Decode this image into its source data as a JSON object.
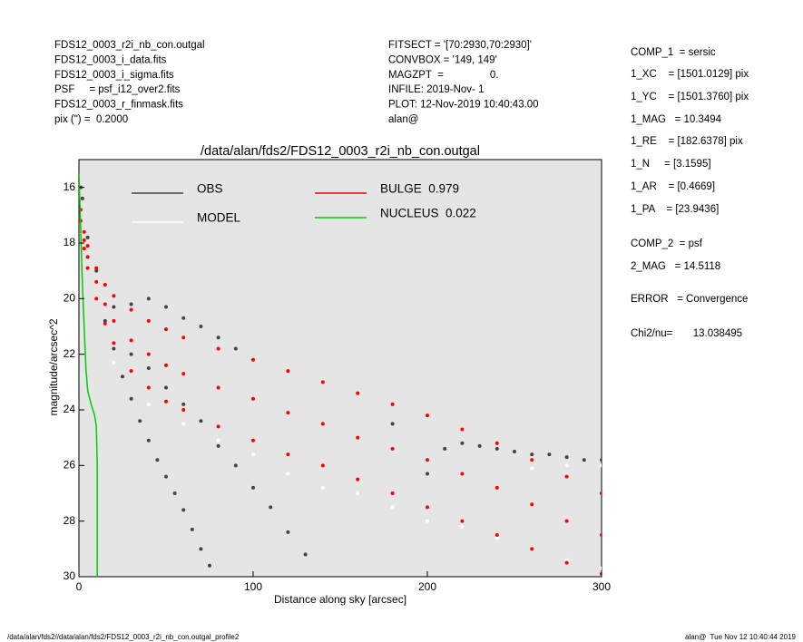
{
  "header": {
    "left": [
      "FDS12_0003_r2i_nb_con.outgal",
      "FDS12_0003_i_data.fits",
      "FDS12_0003_i_sigma.fits",
      "PSF     = psf_i12_over2.fits",
      "FDS12_0003_r_finmask.fits",
      "pix (\") =  0.2000"
    ],
    "middle": [
      "FITSECT = '[70:2930,70:2930]'",
      "CONVBOX = '149, 149'",
      "MAGZPT  =                0.",
      "INFILE: 2019-Nov- 1",
      "PLOT: 12-Nov-2019 10:40:43.00",
      "alan@"
    ],
    "right": [
      "COMP_1  = sersic",
      "1_XC    = [1501.0129] pix",
      "1_YC    = [1501.3760] pix",
      "1_MAG   = 10.3494",
      "1_RE    = [182.6378] pix",
      "1_N     = [3.1595]",
      "1_AR    = [0.4669]",
      "1_PA    = [23.9436]",
      "COMP_2  = psf",
      "2_MAG   = 14.5118",
      "ERROR   = Convergence",
      "Chi2/nu=       13.038495"
    ]
  },
  "footer": {
    "left": "/data/alan/fds2//data/alan/fds2/FDS12_0003_r2i_nb_con.outgal_profile2",
    "right": "alan@  Tue Nov 12 10:40:44 2019"
  },
  "chart_data": {
    "type": "scatter",
    "title": "/data/alan/fds2/FDS12_0003_r2i_nb_con.outgal",
    "x_label": "Distance along sky [arcsec]",
    "y_label": "magnitude/arcsec^2",
    "xlim": [
      0,
      300
    ],
    "xticks": [
      0,
      100,
      200,
      300
    ],
    "ylim": [
      15,
      30
    ],
    "yticks": [
      16,
      18,
      20,
      22,
      24,
      26,
      28,
      30
    ],
    "y_inverted": true,
    "background": "#e5e5e5",
    "series": [
      {
        "name": "OBS",
        "color": "#444444",
        "mode": "points",
        "x": [
          1,
          2,
          5,
          10,
          20,
          30,
          40,
          50,
          60,
          70,
          80,
          90,
          15,
          20,
          25,
          30,
          35,
          40,
          45,
          50,
          55,
          60,
          65,
          70,
          75,
          30,
          40,
          50,
          60,
          70,
          80,
          90,
          100,
          110,
          120,
          130,
          210,
          220,
          230,
          240,
          250,
          260,
          270,
          280,
          290,
          300,
          180,
          200
        ],
        "y": [
          16.0,
          16.4,
          17.8,
          19.0,
          20.3,
          20.2,
          20.0,
          20.3,
          20.7,
          21.0,
          21.4,
          21.8,
          20.8,
          21.8,
          22.8,
          23.6,
          24.4,
          25.1,
          25.8,
          26.4,
          27.0,
          27.6,
          28.3,
          29.0,
          29.6,
          22.0,
          22.5,
          23.2,
          23.8,
          24.4,
          25.3,
          26.0,
          26.8,
          27.5,
          28.4,
          29.2,
          25.4,
          25.2,
          25.3,
          25.4,
          25.5,
          25.6,
          25.6,
          25.7,
          25.8,
          25.8,
          24.5,
          26.3
        ]
      },
      {
        "name": "MODEL",
        "color": "#ffffff",
        "mode": "points",
        "x": [
          20,
          40,
          60,
          80,
          100,
          120,
          140,
          160,
          180,
          200,
          220,
          240,
          260,
          280,
          300,
          300,
          280,
          260
        ],
        "y": [
          22.3,
          23.8,
          24.5,
          25.1,
          25.6,
          26.3,
          26.8,
          27.0,
          27.5,
          28.0,
          28.2,
          28.6,
          29.0,
          29.4,
          29.7,
          26.0,
          26.0,
          26.1
        ]
      },
      {
        "name": "BULGE  0.979",
        "color": "#ff0000",
        "mode": "points",
        "x": [
          1,
          3,
          5,
          10,
          15,
          20,
          30,
          40,
          50,
          60,
          80,
          100,
          120,
          140,
          160,
          180,
          200,
          220,
          240,
          260,
          280,
          300,
          1,
          3,
          5,
          10,
          15,
          20,
          30,
          40,
          50,
          60,
          80,
          100,
          120,
          140,
          160,
          180,
          200,
          220,
          240,
          260,
          280,
          300,
          3,
          5,
          10,
          15,
          20,
          30,
          40,
          50,
          60,
          80,
          100,
          120,
          140,
          160,
          180,
          200,
          220,
          240,
          260,
          280,
          300
        ],
        "y": [
          16.8,
          17.6,
          18.1,
          18.9,
          19.5,
          19.9,
          20.4,
          20.8,
          21.1,
          21.4,
          21.8,
          22.2,
          22.6,
          23.0,
          23.4,
          23.8,
          24.2,
          24.7,
          25.2,
          25.8,
          26.4,
          27.0,
          17.2,
          18.2,
          18.9,
          20.0,
          20.9,
          21.6,
          22.6,
          23.2,
          23.7,
          24.0,
          24.6,
          25.1,
          25.6,
          26.0,
          26.5,
          27.0,
          27.5,
          28.0,
          28.5,
          29.0,
          29.5,
          29.9,
          17.9,
          18.5,
          19.4,
          20.2,
          20.8,
          21.5,
          22.0,
          22.4,
          22.7,
          23.2,
          23.6,
          24.1,
          24.5,
          25.0,
          25.4,
          25.8,
          26.3,
          26.8,
          27.4,
          28.0,
          28.5
        ]
      },
      {
        "name": "NUCLEUS  0.022",
        "color": "#00cc00",
        "mode": "line",
        "x": [
          0,
          1,
          2,
          3,
          4,
          5,
          7,
          9,
          10,
          10.5,
          10.5
        ],
        "y": [
          15.5,
          17.5,
          19.5,
          21,
          22.5,
          23.3,
          23.8,
          24.2,
          24.6,
          26,
          30
        ]
      }
    ]
  }
}
